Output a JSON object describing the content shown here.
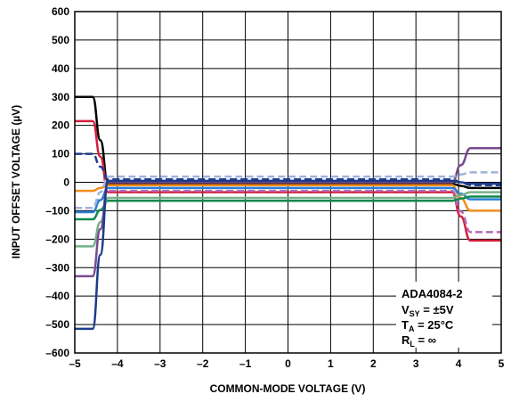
{
  "chart_data": {
    "type": "line",
    "xlabel": "COMMON-MODE VOLTAGE (V)",
    "ylabel": "INPUT OFFSET VOLTAGE (µV)",
    "xlim": [
      -5,
      5
    ],
    "ylim": [
      -600,
      600
    ],
    "x_ticks": [
      "–5",
      "–4",
      "–3",
      "–2",
      "–1",
      "0",
      "1",
      "2",
      "3",
      "4",
      "5"
    ],
    "y_ticks": [
      "600",
      "500",
      "400",
      "300",
      "200",
      "100",
      "0",
      "–100",
      "–200",
      "–300",
      "–400",
      "–500",
      "–600"
    ],
    "grid": true,
    "legend": "none",
    "annotation": {
      "line1": "ADA4084-2",
      "v_main": "V",
      "v_sub": "SY",
      "v_rest": " = ±5V",
      "t_main": "T",
      "t_sub": "A",
      "t_rest": " = 25°C",
      "r_main": "R",
      "r_sub": "L",
      "r_rest": " = ∞"
    },
    "series": [
      {
        "color": "#000000",
        "dash": false,
        "left": 300,
        "mid": -5,
        "right": -20
      },
      {
        "color": "#d21f3c",
        "dash": false,
        "left": 215,
        "mid": -35,
        "right": -205
      },
      {
        "color": "#1f3a93",
        "dash": true,
        "left": 100,
        "mid": 10,
        "right": -10
      },
      {
        "color": "#f28c1e",
        "dash": false,
        "left": -30,
        "mid": -10,
        "right": -100
      },
      {
        "color": "#b46ab4",
        "dash": true,
        "left": -90,
        "mid": -30,
        "right": -175
      },
      {
        "color": "#2a7fd6",
        "dash": false,
        "left": -105,
        "mid": -20,
        "right": -60
      },
      {
        "color": "#118a4e",
        "dash": false,
        "left": -130,
        "mid": -65,
        "right": -50
      },
      {
        "color": "#76b08a",
        "dash": false,
        "left": -225,
        "mid": -55,
        "right": -35
      },
      {
        "color": "#7a4b8f",
        "dash": false,
        "left": -330,
        "mid": 0,
        "right": 120
      },
      {
        "color": "#9fb4d9",
        "dash": true,
        "left": -90,
        "mid": 20,
        "right": 35
      },
      {
        "color": "#1d3b8c",
        "dash": false,
        "left": -515,
        "mid": 5,
        "right": -5
      }
    ]
  }
}
